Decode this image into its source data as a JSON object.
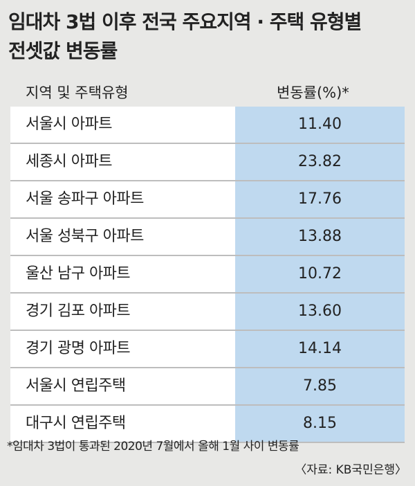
{
  "header": {
    "title": [
      "임대차 3법 이후 전국 주요지역 · 주택 유형별",
      "전셋값 변동률"
    ]
  },
  "table": {
    "columns": [
      "지역 및 주택유형",
      "변동률(%)*"
    ],
    "rows": [
      [
        "서울시 아파트",
        "11.40"
      ],
      [
        "세종시 아파트",
        "23.82"
      ],
      [
        "서울 송파구 아파트",
        "17.76"
      ],
      [
        "서울 성북구 아파트",
        "13.88"
      ],
      [
        "울산 남구 아파트",
        "10.72"
      ],
      [
        "경기 김포 아파트",
        "13.60"
      ],
      [
        "경기 광명 아파트",
        "14.14"
      ],
      [
        "서울시 연립주택",
        "7.85"
      ],
      [
        "대구시 연립주택",
        "8.15"
      ]
    ]
  },
  "footnote": "*임대차 3법이 통과된 2020년 7월에서 올해 1월 사이 변동률",
  "source": "〈자료: KB국민은행〉"
}
